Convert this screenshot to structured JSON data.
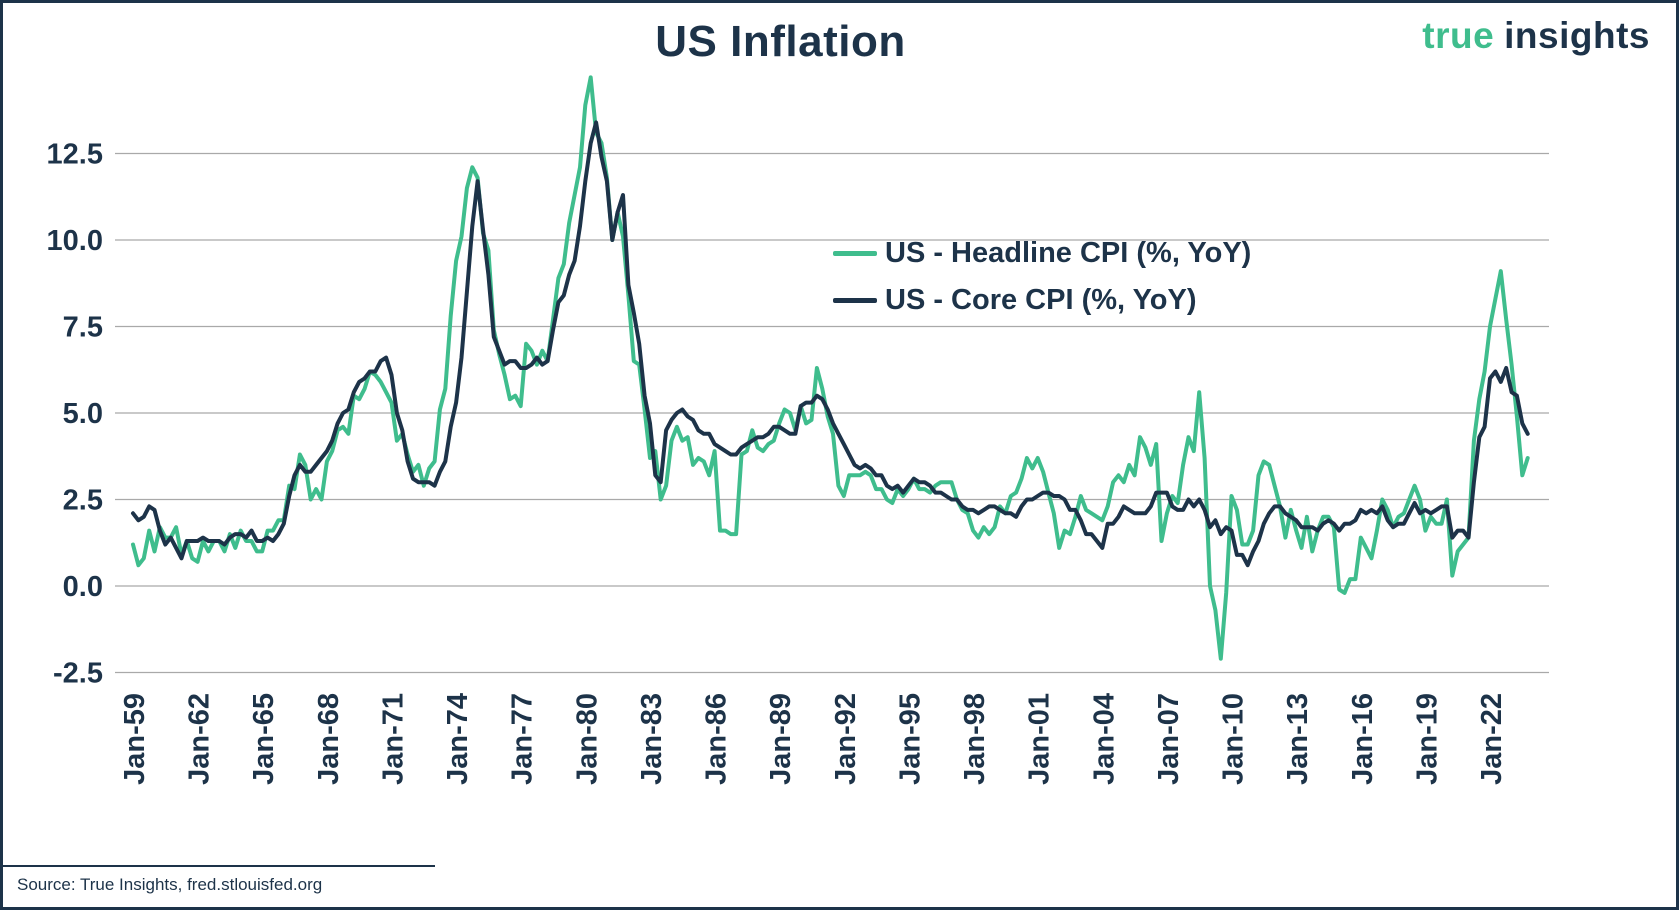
{
  "logo": {
    "part1": "true",
    "part2": "insights"
  },
  "footer": {
    "source": "Source: True Insights, fred.stlouisfed.org"
  },
  "chart_data": {
    "type": "line",
    "title": "US Inflation",
    "grid": true,
    "grid_color": "#a9a9a9",
    "legend_position": "upper-right-inside",
    "y_ticks": [
      -2.5,
      0.0,
      2.5,
      5.0,
      7.5,
      10.0,
      12.5
    ],
    "ylim": [
      -3.4,
      15.3
    ],
    "x_start_year": 1959,
    "points_per_year": 4,
    "x_tick_interval_years": 3,
    "x_tick_labels": [
      "Jan-59",
      "Jan-62",
      "Jan-65",
      "Jan-68",
      "Jan-71",
      "Jan-74",
      "Jan-77",
      "Jan-80",
      "Jan-83",
      "Jan-86",
      "Jan-89",
      "Jan-92",
      "Jan-95",
      "Jan-98",
      "Jan-01",
      "Jan-04",
      "Jan-07",
      "Jan-10",
      "Jan-13",
      "Jan-16",
      "Jan-19",
      "Jan-22"
    ],
    "series": [
      {
        "name": "US - Headline CPI (%, YoY)",
        "color": "#3fbd8d",
        "values": [
          1.2,
          0.6,
          0.8,
          1.6,
          1.0,
          1.7,
          1.4,
          1.4,
          1.7,
          0.9,
          1.3,
          0.8,
          0.7,
          1.3,
          1.0,
          1.3,
          1.3,
          1.0,
          1.5,
          1.1,
          1.6,
          1.3,
          1.3,
          1.0,
          1.0,
          1.6,
          1.6,
          1.9,
          1.9,
          2.9,
          2.8,
          3.8,
          3.5,
          2.5,
          2.8,
          2.5,
          3.6,
          3.9,
          4.5,
          4.6,
          4.4,
          5.5,
          5.4,
          5.7,
          6.2,
          6.1,
          5.9,
          5.6,
          5.3,
          4.2,
          4.4,
          3.8,
          3.3,
          3.5,
          2.9,
          3.4,
          3.6,
          5.1,
          5.7,
          7.8,
          9.4,
          10.1,
          11.5,
          12.1,
          11.8,
          10.2,
          9.7,
          7.4,
          6.7,
          6.1,
          5.4,
          5.5,
          5.2,
          7.0,
          6.8,
          6.4,
          6.8,
          6.5,
          7.7,
          8.9,
          9.3,
          10.5,
          11.3,
          12.1,
          13.9,
          14.7,
          13.1,
          12.8,
          11.8,
          10.0,
          10.8,
          10.1,
          8.4,
          6.5,
          6.4,
          5.1,
          3.7,
          3.9,
          2.5,
          2.9,
          4.2,
          4.6,
          4.2,
          4.3,
          3.5,
          3.7,
          3.6,
          3.2,
          3.9,
          1.6,
          1.6,
          1.5,
          1.5,
          3.8,
          3.9,
          4.5,
          4.0,
          3.9,
          4.1,
          4.2,
          4.7,
          5.1,
          5.0,
          4.5,
          5.2,
          4.7,
          4.8,
          6.3,
          5.7,
          4.9,
          4.4,
          2.9,
          2.6,
          3.2,
          3.2,
          3.2,
          3.3,
          3.2,
          2.8,
          2.8,
          2.5,
          2.4,
          2.8,
          2.6,
          2.8,
          3.1,
          2.8,
          2.8,
          2.7,
          2.9,
          3.0,
          3.0,
          3.0,
          2.5,
          2.2,
          2.1,
          1.6,
          1.4,
          1.7,
          1.5,
          1.7,
          2.3,
          2.1,
          2.6,
          2.7,
          3.1,
          3.7,
          3.4,
          3.7,
          3.3,
          2.7,
          2.1,
          1.1,
          1.6,
          1.5,
          2.0,
          2.6,
          2.2,
          2.1,
          2.0,
          1.9,
          2.3,
          3.0,
          3.2,
          3.0,
          3.5,
          3.2,
          4.3,
          4.0,
          3.5,
          4.1,
          1.3,
          2.1,
          2.6,
          2.4,
          3.5,
          4.3,
          3.9,
          5.6,
          3.7,
          0.0,
          -0.7,
          -2.1,
          -0.2,
          2.6,
          2.2,
          1.2,
          1.2,
          1.6,
          3.2,
          3.6,
          3.5,
          2.9,
          2.3,
          1.4,
          2.2,
          1.6,
          1.1,
          2.0,
          1.0,
          1.6,
          2.0,
          2.0,
          1.7,
          -0.1,
          -0.2,
          0.2,
          0.2,
          1.4,
          1.1,
          0.8,
          1.6,
          2.5,
          2.2,
          1.7,
          2.0,
          2.1,
          2.5,
          2.9,
          2.5,
          1.6,
          2.0,
          1.8,
          1.8,
          2.5,
          0.3,
          1.0,
          1.2,
          1.4,
          4.2,
          5.4,
          6.2,
          7.5,
          8.3,
          9.1,
          7.7,
          6.4,
          4.9,
          3.2,
          3.7
        ]
      },
      {
        "name": "US - Core CPI (%, YoY)",
        "color": "#1d3349",
        "values": [
          2.1,
          1.9,
          2.0,
          2.3,
          2.2,
          1.6,
          1.2,
          1.4,
          1.1,
          0.8,
          1.3,
          1.3,
          1.3,
          1.4,
          1.3,
          1.3,
          1.3,
          1.2,
          1.4,
          1.5,
          1.5,
          1.4,
          1.6,
          1.3,
          1.3,
          1.4,
          1.3,
          1.5,
          1.8,
          2.6,
          3.2,
          3.5,
          3.3,
          3.3,
          3.5,
          3.7,
          3.9,
          4.2,
          4.7,
          5.0,
          5.1,
          5.6,
          5.9,
          6.0,
          6.2,
          6.2,
          6.5,
          6.6,
          6.1,
          5.0,
          4.5,
          3.6,
          3.1,
          3.0,
          3.0,
          3.0,
          2.9,
          3.3,
          3.6,
          4.6,
          5.3,
          6.6,
          8.5,
          10.4,
          11.7,
          10.3,
          9.0,
          7.2,
          6.8,
          6.4,
          6.5,
          6.5,
          6.3,
          6.3,
          6.4,
          6.6,
          6.4,
          6.5,
          7.4,
          8.2,
          8.4,
          9.0,
          9.4,
          10.4,
          11.7,
          12.8,
          13.4,
          12.4,
          11.7,
          10.0,
          10.8,
          11.3,
          8.7,
          7.9,
          7.0,
          5.5,
          4.7,
          3.2,
          3.0,
          4.5,
          4.8,
          5.0,
          5.1,
          4.9,
          4.8,
          4.5,
          4.4,
          4.4,
          4.1,
          4.0,
          3.9,
          3.8,
          3.8,
          4.0,
          4.1,
          4.2,
          4.3,
          4.3,
          4.4,
          4.6,
          4.6,
          4.5,
          4.4,
          4.4,
          5.2,
          5.3,
          5.3,
          5.5,
          5.4,
          5.1,
          4.7,
          4.4,
          4.1,
          3.8,
          3.5,
          3.4,
          3.5,
          3.4,
          3.2,
          3.2,
          2.9,
          2.8,
          2.9,
          2.7,
          2.9,
          3.1,
          3.0,
          3.0,
          2.9,
          2.7,
          2.7,
          2.6,
          2.5,
          2.5,
          2.3,
          2.2,
          2.2,
          2.1,
          2.2,
          2.3,
          2.3,
          2.2,
          2.1,
          2.1,
          2.0,
          2.3,
          2.5,
          2.5,
          2.6,
          2.7,
          2.7,
          2.6,
          2.6,
          2.5,
          2.2,
          2.2,
          1.9,
          1.5,
          1.5,
          1.3,
          1.1,
          1.8,
          1.8,
          2.0,
          2.3,
          2.2,
          2.1,
          2.1,
          2.1,
          2.3,
          2.7,
          2.7,
          2.7,
          2.3,
          2.2,
          2.2,
          2.5,
          2.3,
          2.5,
          2.2,
          1.7,
          1.9,
          1.5,
          1.7,
          1.6,
          0.9,
          0.9,
          0.6,
          1.0,
          1.3,
          1.8,
          2.1,
          2.3,
          2.3,
          2.1,
          2.0,
          1.9,
          1.7,
          1.7,
          1.7,
          1.6,
          1.8,
          1.9,
          1.8,
          1.6,
          1.8,
          1.8,
          1.9,
          2.2,
          2.1,
          2.2,
          2.1,
          2.3,
          1.9,
          1.7,
          1.8,
          1.8,
          2.1,
          2.4,
          2.1,
          2.2,
          2.1,
          2.2,
          2.3,
          2.3,
          1.4,
          1.6,
          1.6,
          1.4,
          3.0,
          4.3,
          4.6,
          6.0,
          6.2,
          5.9,
          6.3,
          5.6,
          5.5,
          4.7,
          4.4
        ]
      }
    ]
  }
}
